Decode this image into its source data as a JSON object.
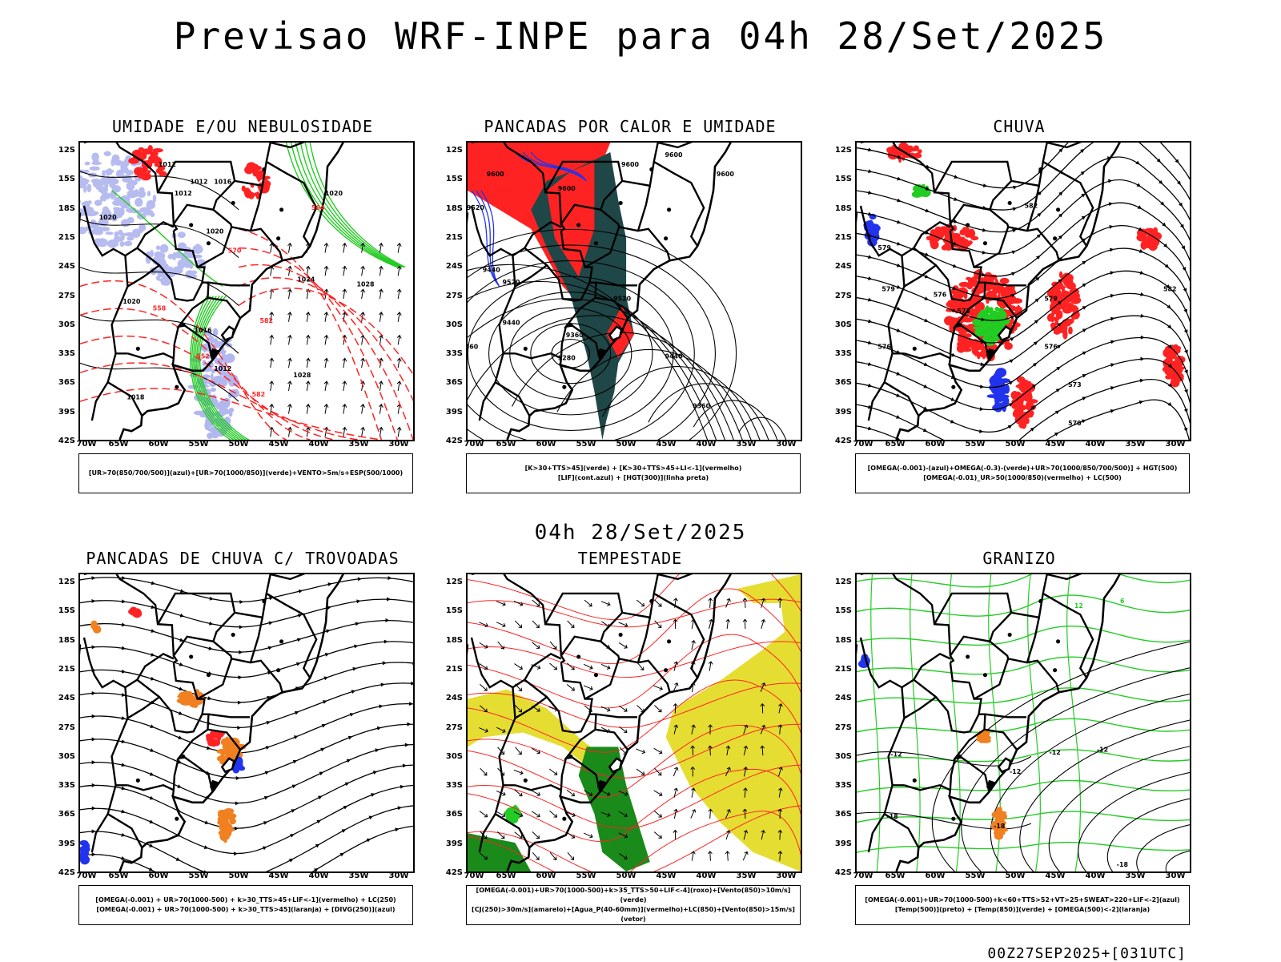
{
  "header": {
    "title": "Previsao WRF-INPE  para 04h 28/Set/2025"
  },
  "mid_label": "04h 28/Set/2025",
  "footer": "00Z27SEP2025+[031UTC]",
  "axes": {
    "lat_labels": [
      "12S",
      "15S",
      "18S",
      "21S",
      "24S",
      "27S",
      "30S",
      "33S",
      "36S",
      "39S",
      "42S"
    ],
    "lon_labels": [
      "70W",
      "65W",
      "60W",
      "55W",
      "50W",
      "45W",
      "40W",
      "35W",
      "30W"
    ]
  },
  "colors": {
    "blue_shade": "#aab0ee",
    "green": "#22cc22",
    "red": "#ff2222",
    "dark_teal": "#1f4747",
    "yellow": "#e6dd33",
    "orange": "#f08020",
    "blue": "#2233ee",
    "dark_green": "#1a8a1a"
  },
  "panels": [
    {
      "title": "UMIDADE E/OU NEBULOSIDADE",
      "legend": [
        "[UR>70(850/700/500)](azul)+[UR>70(1000/850)](verde)+VENTO>5m/s+ESP(500/1000)"
      ],
      "contour_labels": [
        {
          "text": "1012",
          "c": "#000",
          "lon": -59,
          "lat": -13.5
        },
        {
          "text": "1012",
          "c": "#000",
          "lon": -57,
          "lat": -16.5
        },
        {
          "text": "1012",
          "c": "#000",
          "lon": -55,
          "lat": -15.3
        },
        {
          "text": "1016",
          "c": "#000",
          "lon": -52,
          "lat": -15.3
        },
        {
          "text": "1020",
          "c": "#000",
          "lon": -38,
          "lat": -16.5
        },
        {
          "text": "1020",
          "c": "#000",
          "lon": -66.5,
          "lat": -19
        },
        {
          "text": "1020",
          "c": "#000",
          "lon": -53,
          "lat": -20.5
        },
        {
          "text": "1020",
          "c": "#000",
          "lon": -63.5,
          "lat": -27.8
        },
        {
          "text": "1016",
          "c": "#000",
          "lon": -54.5,
          "lat": -30.8
        },
        {
          "text": "1012",
          "c": "#000",
          "lon": -52,
          "lat": -34.8
        },
        {
          "text": "1018",
          "c": "#000",
          "lon": -63,
          "lat": -37.8
        },
        {
          "text": "1024",
          "c": "#000",
          "lon": -41.5,
          "lat": -25.5
        },
        {
          "text": "1028",
          "c": "#000",
          "lon": -34,
          "lat": -26
        },
        {
          "text": "1028",
          "c": "#000",
          "lon": -42,
          "lat": -35.5
        },
        {
          "text": "558",
          "c": "#ff2222",
          "lon": -60,
          "lat": -28.5
        },
        {
          "text": "552",
          "c": "#ff2222",
          "lon": -54.5,
          "lat": -33.5
        },
        {
          "text": "582",
          "c": "#ff2222",
          "lon": -47.5,
          "lat": -37.5
        },
        {
          "text": "582",
          "c": "#ff2222",
          "lon": -46.5,
          "lat": -29.8
        },
        {
          "text": "564",
          "c": "#ff2222",
          "lon": -40,
          "lat": -18
        },
        {
          "text": "570",
          "c": "#ff2222",
          "lon": -50.5,
          "lat": -22.5
        }
      ]
    },
    {
      "title": "PANCADAS POR CALOR E UMIDADE",
      "legend": [
        "[K>30+TTS>45](verde) + [K>30+TTS>45+LI<-1](vermelho)",
        "[LIF](cont.azul) + [HGT(300)](linha preta)"
      ],
      "contour_labels": [
        {
          "text": "9600",
          "c": "#000",
          "lon": -66.5,
          "lat": -14.5
        },
        {
          "text": "9600",
          "c": "#000",
          "lon": -57.5,
          "lat": -16
        },
        {
          "text": "9600",
          "c": "#000",
          "lon": -49.5,
          "lat": -13.5
        },
        {
          "text": "9600",
          "c": "#000",
          "lon": -44,
          "lat": -12.5
        },
        {
          "text": "9600",
          "c": "#000",
          "lon": -37.5,
          "lat": -14.5
        },
        {
          "text": "9520",
          "c": "#000",
          "lon": -69,
          "lat": -18
        },
        {
          "text": "9520",
          "c": "#000",
          "lon": -64.5,
          "lat": -25.8
        },
        {
          "text": "9520",
          "c": "#000",
          "lon": -50.5,
          "lat": -27.5
        },
        {
          "text": "9440",
          "c": "#000",
          "lon": -67,
          "lat": -24.5
        },
        {
          "text": "9440",
          "c": "#000",
          "lon": -64.5,
          "lat": -30
        },
        {
          "text": "9440",
          "c": "#000",
          "lon": -44,
          "lat": -33.5
        },
        {
          "text": "9360",
          "c": "#000",
          "lon": -56.5,
          "lat": -31.3
        },
        {
          "text": "9360",
          "c": "#000",
          "lon": -40.5,
          "lat": -38.7
        },
        {
          "text": "9280",
          "c": "#000",
          "lon": -57.5,
          "lat": -33.7
        },
        {
          "text": "360",
          "c": "#000",
          "lon": -69.5,
          "lat": -32.5
        }
      ]
    },
    {
      "title": "CHUVA",
      "legend": [
        "[OMEGA(-0.001)-(azul)+OMEGA(-0.3)-(verde)+UR>70(1000/850/700/500)] + HGT(500)",
        "[OMEGA(-0.01)_UR>50(1000/850)(vermelho) + LC(500)"
      ],
      "contour_labels": [
        {
          "text": "582",
          "c": "#000",
          "lon": -48,
          "lat": -17.8
        },
        {
          "text": "579",
          "c": "#000",
          "lon": -66.5,
          "lat": -22.2
        },
        {
          "text": "579",
          "c": "#000",
          "lon": -45.5,
          "lat": -27.5
        },
        {
          "text": "579",
          "c": "#000",
          "lon": -66,
          "lat": -26.5
        },
        {
          "text": "576",
          "c": "#000",
          "lon": -59.5,
          "lat": -27.1
        },
        {
          "text": "576",
          "c": "#000",
          "lon": -66.5,
          "lat": -32.5
        },
        {
          "text": "576",
          "c": "#000",
          "lon": -45.5,
          "lat": -32.5
        },
        {
          "text": "573",
          "c": "#000",
          "lon": -56.5,
          "lat": -28.8
        },
        {
          "text": "573",
          "c": "#000",
          "lon": -42.5,
          "lat": -36.5
        },
        {
          "text": "570",
          "c": "#000",
          "lon": -42.5,
          "lat": -40.5
        },
        {
          "text": "582",
          "c": "#000",
          "lon": -30.5,
          "lat": -26.5
        }
      ]
    },
    {
      "title": "PANCADAS DE CHUVA C/ TROVOADAS",
      "legend": [
        "[OMEGA(-0.001) + UR>70(1000-500) + k>30_TTS>45+LIF<-1](vermelho) + LC(250)",
        "[OMEGA(-0.001) + UR>70(1000-500) + k>30_TTS>45](laranja) + [DIVG(250)](azul)"
      ],
      "contour_labels": []
    },
    {
      "title": "TEMPESTADE",
      "legend": [
        "[OMEGA(-0.001)+UR>70(1000-500)+k>35_TTS>50+LIF<-4](roxo)+[Vento(850)>10m/s](verde)",
        "[CJ(250)>30m/s](amarelo)+[Agua_P(40-60mm)](vermelho)+LC(850)+[Vento(850)>15m/s](vetor)"
      ],
      "contour_labels": []
    },
    {
      "title": "GRANIZO",
      "legend": [
        "[OMEGA(-0.001)+UR>70(1000-500)+k<60+TTS>52+VT>25+SWEAT>220+LIF<-2](azul)",
        "[Temp(500)](preto) + [Temp(850)](verde) + [OMEGA(500)<-2](laranja)"
      ],
      "contour_labels": [
        {
          "text": "-12",
          "c": "#000",
          "lon": -65,
          "lat": -30
        },
        {
          "text": "-12",
          "c": "#000",
          "lon": -50,
          "lat": -31.8
        },
        {
          "text": "-12",
          "c": "#000",
          "lon": -45,
          "lat": -29.8
        },
        {
          "text": "-12",
          "c": "#000",
          "lon": -39,
          "lat": -29.5
        },
        {
          "text": "-18",
          "c": "#000",
          "lon": -65.5,
          "lat": -36.5
        },
        {
          "text": "-18",
          "c": "#000",
          "lon": -52,
          "lat": -37.5
        },
        {
          "text": "-18",
          "c": "#000",
          "lon": -36.5,
          "lat": -41.5
        },
        {
          "text": "12",
          "c": "#22cc22",
          "lon": -42,
          "lat": -14.5
        },
        {
          "text": "6",
          "c": "#22cc22",
          "lon": -36.5,
          "lat": -14
        }
      ]
    }
  ]
}
